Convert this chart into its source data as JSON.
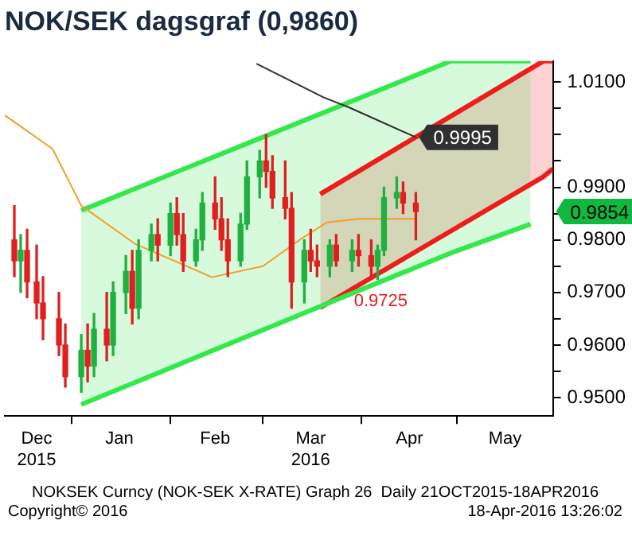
{
  "chart_data": {
    "type": "candlestick",
    "title": "NOK/SEK dagsgraf (0,9860)",
    "xlim": [
      "2015-12-11",
      "2016-05-31"
    ],
    "xticks": [
      {
        "value": "2015-12-21",
        "label": "Dec 2015"
      },
      {
        "value": "2016-01-01",
        "label": null
      },
      {
        "value": "2016-01-16",
        "label": "Jan"
      },
      {
        "value": "2016-02-01",
        "label": null
      },
      {
        "value": "2016-02-15",
        "label": "Feb"
      },
      {
        "value": "2016-03-01",
        "label": null
      },
      {
        "value": "2016-03-16",
        "label": "Mar 2016"
      },
      {
        "value": "2016-04-01",
        "label": null
      },
      {
        "value": "2016-04-16",
        "label": "Apr"
      },
      {
        "value": "2016-05-01",
        "label": null
      },
      {
        "value": "2016-05-16",
        "label": "May"
      }
    ],
    "ylim": [
      0.9465,
      1.014
    ],
    "yticks": [
      {
        "value": 0.95,
        "label": "0.9500"
      },
      {
        "value": 0.955,
        "label": null
      },
      {
        "value": 0.96,
        "label": "0.9600"
      },
      {
        "value": 0.965,
        "label": null
      },
      {
        "value": 0.97,
        "label": "0.9700"
      },
      {
        "value": 0.975,
        "label": null
      },
      {
        "value": 0.98,
        "label": "0.9800"
      },
      {
        "value": 0.985,
        "label": null
      },
      {
        "value": 0.99,
        "label": "0.9900"
      },
      {
        "value": 0.995,
        "label": null
      },
      {
        "value": 1.0,
        "label": null
      },
      {
        "value": 1.005,
        "label": null
      },
      {
        "value": 1.01,
        "label": "1.0100"
      }
    ],
    "series": [
      {
        "type": "line",
        "color": "#33e84a",
        "x": [
          "2016-01-04",
          "2016-04-29",
          "2016-05-24"
        ],
        "values": [
          0.9856,
          1.014,
          1.014
        ],
        "lower": [
          0.9487,
          0.9775,
          0.983
        ],
        "upper": [
          0.9856,
          1.014,
          1.014
        ]
      },
      {
        "type": "line",
        "color": "#33e84a",
        "x": [
          "2016-01-04",
          "2016-04-29",
          "2016-05-24"
        ],
        "values": [
          0.9487,
          0.9775,
          0.983
        ]
      },
      {
        "type": "line",
        "color": "#ee1c1c",
        "x": [
          "2016-03-19",
          "2016-05-28",
          "2016-05-31"
        ],
        "values": [
          0.9887,
          1.014,
          1.014
        ],
        "lower": [
          0.9671,
          0.992,
          0.9935
        ],
        "upper": [
          0.9887,
          1.014,
          1.014
        ]
      },
      {
        "type": "line",
        "color": "#ee1c1c",
        "x": [
          "2016-03-19",
          "2016-05-28",
          "2016-05-31"
        ],
        "values": [
          0.9671,
          0.992,
          0.9935
        ]
      },
      {
        "type": "line",
        "color": "#f0a030",
        "x": [
          "2015-12-11",
          "2015-12-26",
          "2016-01-04",
          "2016-01-21",
          "2016-02-14",
          "2016-03-01",
          "2016-03-13",
          "2016-03-21",
          "2016-03-31",
          "2016-04-18"
        ],
        "values": [
          1.0037,
          0.9973,
          0.9865,
          0.9792,
          0.9729,
          0.975,
          0.9802,
          0.9833,
          0.984,
          0.984
        ]
      },
      {
        "type": "line",
        "color": "#303030",
        "x": [
          "2016-02-28",
          "2016-03-20",
          "2016-03-28",
          "2016-04-18"
        ],
        "values": [
          1.0135,
          1.0071,
          1.0052,
          0.9995
        ],
        "value_labels": [
          null,
          null,
          null,
          "0.9995"
        ]
      },
      {
        "type": "candlestick",
        "x": [
          "2015-12-14",
          "2015-12-16",
          "2015-12-18",
          "2015-12-21",
          "2015-12-23",
          "2015-12-28",
          "2015-12-30",
          "2016-01-04",
          "2016-01-06",
          "2016-01-08",
          "2016-01-12",
          "2016-01-14",
          "2016-01-18",
          "2016-01-20",
          "2016-01-22",
          "2016-01-26",
          "2016-01-28",
          "2016-02-01",
          "2016-02-03",
          "2016-02-05",
          "2016-02-09",
          "2016-02-11",
          "2016-02-15",
          "2016-02-17",
          "2016-02-19",
          "2016-02-23",
          "2016-02-25",
          "2016-02-29",
          "2016-03-02",
          "2016-03-04",
          "2016-03-08",
          "2016-03-10",
          "2016-03-14",
          "2016-03-16",
          "2016-03-18",
          "2016-03-22",
          "2016-03-24",
          "2016-03-29",
          "2016-03-31",
          "2016-04-04",
          "2016-04-06",
          "2016-04-08",
          "2016-04-12",
          "2016-04-14",
          "2016-04-18"
        ],
        "ohlc": [
          [
            0.98,
            0.9865,
            0.973,
            0.976
          ],
          [
            0.976,
            0.981,
            0.97,
            0.978
          ],
          [
            0.978,
            0.982,
            0.969,
            0.972
          ],
          [
            0.972,
            0.979,
            0.965,
            0.968
          ],
          [
            0.968,
            0.973,
            0.961,
            0.965
          ],
          [
            0.965,
            0.97,
            0.958,
            0.96
          ],
          [
            0.96,
            0.964,
            0.952,
            0.954
          ],
          [
            0.954,
            0.962,
            0.951,
            0.959
          ],
          [
            0.959,
            0.964,
            0.953,
            0.956
          ],
          [
            0.956,
            0.966,
            0.954,
            0.963
          ],
          [
            0.963,
            0.97,
            0.957,
            0.96
          ],
          [
            0.96,
            0.972,
            0.958,
            0.97
          ],
          [
            0.97,
            0.977,
            0.966,
            0.974
          ],
          [
            0.974,
            0.978,
            0.964,
            0.967
          ],
          [
            0.967,
            0.98,
            0.965,
            0.978
          ],
          [
            0.978,
            0.983,
            0.976,
            0.981
          ],
          [
            0.981,
            0.984,
            0.976,
            0.979
          ],
          [
            0.979,
            0.987,
            0.977,
            0.985
          ],
          [
            0.985,
            0.988,
            0.979,
            0.981
          ],
          [
            0.981,
            0.985,
            0.974,
            0.976
          ],
          [
            0.976,
            0.982,
            0.975,
            0.98
          ],
          [
            0.98,
            0.989,
            0.978,
            0.987
          ],
          [
            0.987,
            0.992,
            0.982,
            0.984
          ],
          [
            0.984,
            0.988,
            0.978,
            0.98
          ],
          [
            0.98,
            0.984,
            0.973,
            0.976
          ],
          [
            0.976,
            0.985,
            0.975,
            0.983
          ],
          [
            0.983,
            0.995,
            0.982,
            0.992
          ],
          [
            0.992,
            0.997,
            0.988,
            0.995
          ],
          [
            0.995,
            1.0,
            0.99,
            0.993
          ],
          [
            0.993,
            0.996,
            0.986,
            0.988
          ],
          [
            0.988,
            0.995,
            0.984,
            0.986
          ],
          [
            0.986,
            0.989,
            0.967,
            0.972
          ],
          [
            0.972,
            0.98,
            0.968,
            0.978
          ],
          [
            0.978,
            0.982,
            0.974,
            0.976
          ],
          [
            0.976,
            0.979,
            0.973,
            0.975
          ],
          [
            0.975,
            0.98,
            0.973,
            0.979
          ],
          [
            0.979,
            0.981,
            0.975,
            0.976
          ],
          [
            0.976,
            0.98,
            0.974,
            0.978
          ],
          [
            0.978,
            0.981,
            0.975,
            0.977
          ],
          [
            0.977,
            0.98,
            0.973,
            0.975
          ],
          [
            0.975,
            0.979,
            0.9725,
            0.978
          ],
          [
            0.978,
            0.99,
            0.977,
            0.988
          ],
          [
            0.988,
            0.992,
            0.986,
            0.989
          ],
          [
            0.989,
            0.991,
            0.985,
            0.987
          ],
          [
            0.987,
            0.989,
            0.98,
            0.9854
          ]
        ],
        "colors": [
          "#e02020",
          "#20b040",
          "#e02020",
          "#e02020",
          "#e02020",
          "#e02020",
          "#e02020",
          "#20b040",
          "#e02020",
          "#20b040",
          "#e02020",
          "#20b040",
          "#20b040",
          "#e02020",
          "#20b040",
          "#20b040",
          "#e02020",
          "#20b040",
          "#e02020",
          "#e02020",
          "#20b040",
          "#20b040",
          "#e02020",
          "#e02020",
          "#e02020",
          "#20b040",
          "#20b040",
          "#20b040",
          "#e02020",
          "#e02020",
          "#e02020",
          "#e02020",
          "#20b040",
          "#e02020",
          "#e02020",
          "#20b040",
          "#e02020",
          "#20b040",
          "#e02020",
          "#e02020",
          "#20b040",
          "#20b040",
          "#20b040",
          "#e02020",
          "#e02020"
        ],
        "value_labels": [
          null,
          null,
          null,
          null,
          null,
          null,
          null,
          null,
          null,
          null,
          null,
          null,
          null,
          null,
          null,
          null,
          null,
          null,
          null,
          null,
          null,
          null,
          null,
          null,
          null,
          null,
          null,
          null,
          null,
          null,
          null,
          null,
          null,
          null,
          null,
          null,
          null,
          null,
          null,
          null,
          null,
          null,
          null,
          null,
          "0.9854"
        ]
      }
    ],
    "annotations": [
      {
        "text": "0.9725",
        "x": "2016-04-07",
        "y": 0.9725
      },
      "NOKSEK Curncy (NOK-SEK X-RATE) Graph 26  Daily 21OCT2015-18APR2016",
      "Copyright© 2016",
      "18-Apr-2016 13:26:02"
    ]
  }
}
